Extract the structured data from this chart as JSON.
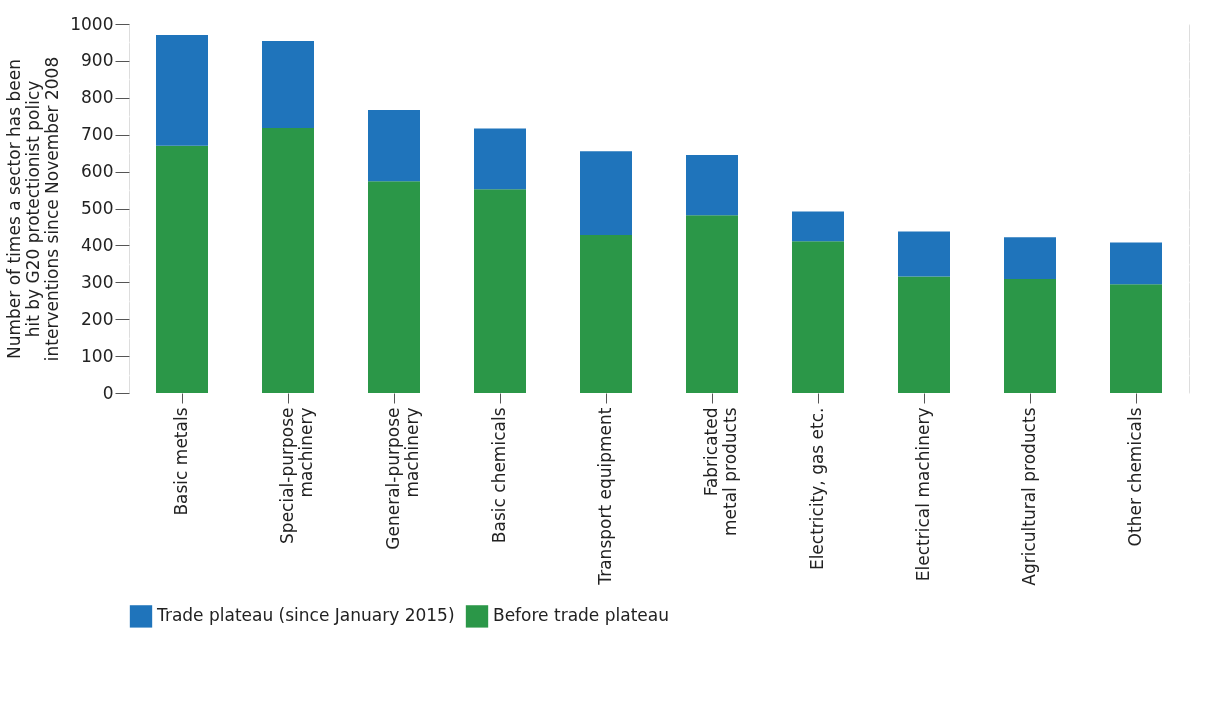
{
  "chart_data": {
    "type": "bar",
    "stacked": true,
    "ylabel": "Number of times a sector has been hit by G20 protectionist policy interventions since November 2008",
    "categories": [
      "Basic metals",
      "Special-purpose machinery",
      "General-purpose machinery",
      "Basic chemicals",
      "Transport equipment",
      "Fabricated metal products",
      "Electricity, gas etc.",
      "Electrical machinery",
      "Agricultural products",
      "Other chemicals"
    ],
    "series": [
      {
        "name": "Before trade plateau",
        "color": "#2b9748",
        "values": [
          670,
          718,
          574,
          552,
          428,
          482,
          411,
          316,
          309,
          295
        ]
      },
      {
        "name": "Trade plateau (since January 2015)",
        "color": "#1f74bb",
        "values": [
          300,
          236,
          193,
          165,
          227,
          163,
          81,
          122,
          113,
          113
        ]
      }
    ],
    "ylim": [
      0,
      1000
    ],
    "yticks": [
      0,
      {
        "value": 50,
        "label": null
      },
      100,
      {
        "value": 150,
        "label": null
      },
      200,
      {
        "value": 250,
        "label": null
      },
      300,
      {
        "value": 350,
        "label": null
      },
      400,
      {
        "value": 450,
        "label": null
      },
      500,
      {
        "value": 550,
        "label": null
      },
      600,
      {
        "value": 650,
        "label": null
      },
      700,
      {
        "value": 750,
        "label": null
      },
      800,
      {
        "value": 850,
        "label": null
      },
      900,
      {
        "value": 950,
        "label": null
      },
      1000
    ],
    "grid": true,
    "legend": "bottom"
  }
}
